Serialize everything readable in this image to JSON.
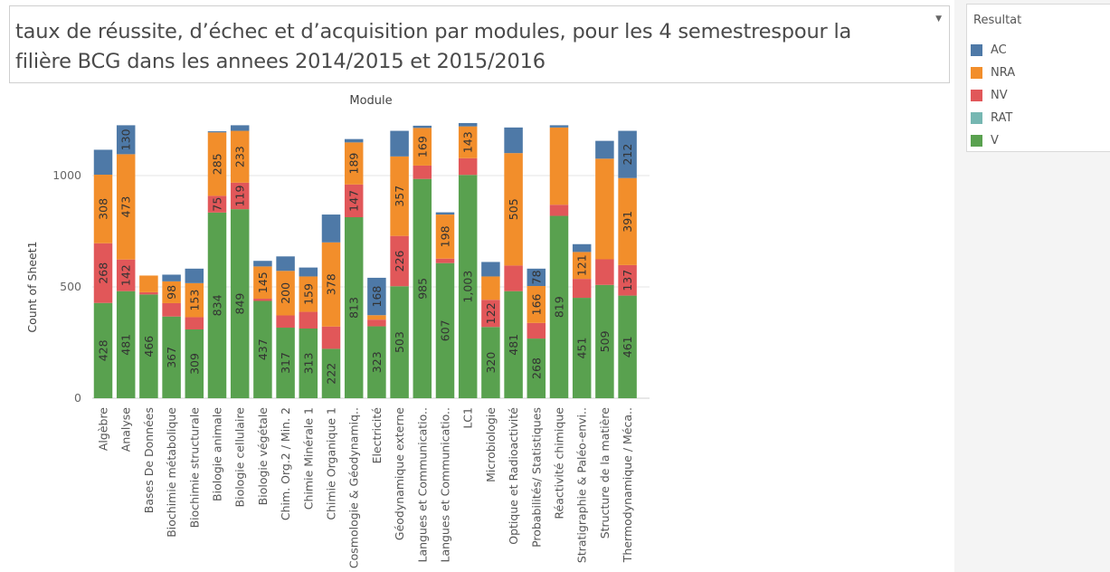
{
  "title": "taux de réussite, d’échec et d’acquisition par modules, pour les 4 semestrespour la filière  BCG dans les annees 2014/2015 et 2015/2016",
  "legend": {
    "title": "Resultat",
    "items": [
      {
        "label": "AC",
        "color": "#4e79a7"
      },
      {
        "label": "NRA",
        "color": "#f28e2b"
      },
      {
        "label": "NV",
        "color": "#e15759"
      },
      {
        "label": "RAT",
        "color": "#76b7b2"
      },
      {
        "label": "V",
        "color": "#59a14f"
      }
    ]
  },
  "chart_data": {
    "type": "bar",
    "stacked": true,
    "orientation": "vertical",
    "title": "Module",
    "xlabel": "",
    "ylabel": "Count of Sheet1",
    "ylim": [
      0,
      1260
    ],
    "yticks": [
      "0",
      "500",
      "1000"
    ],
    "grid": true,
    "legend_position": "right",
    "categories": [
      "Algèbre",
      "Analyse",
      "Bases De Données",
      "Biochimie métabolique",
      "Biochimie structurale",
      "Biologie animale",
      "Biologie cellulaire",
      "Biologie végétale",
      "Chim. Org.2 / Min. 2",
      "Chimie Minérale 1",
      "Chimie Organique 1",
      "Cosmologie & Géodynamiq..",
      "Electricité",
      "Géodynamique externe",
      "Langues et Communicatio..",
      "Langues et Communicatio..",
      "LC1",
      "Microbiologie",
      "Optique et Radioactivité",
      "Probabilités/ Statistiques",
      "Réactivité chimique",
      "Stratigraphie & Paléo-envi..",
      "Structure de la matière",
      "Thermodynamique / Méca.."
    ],
    "series": [
      {
        "name": "V",
        "color": "#59a14f",
        "values": [
          428,
          481,
          466,
          367,
          309,
          834,
          849,
          437,
          317,
          313,
          222,
          813,
          323,
          503,
          985,
          607,
          1003,
          320,
          481,
          268,
          819,
          451,
          509,
          461
        ],
        "labels": [
          "428",
          "481",
          "466",
          "367",
          "309",
          "834",
          "849",
          "437",
          "317",
          "313",
          "222",
          "813",
          "323",
          "503",
          "985",
          "607",
          "1,003",
          "320",
          "481",
          "268",
          "819",
          "451",
          "509",
          "461"
        ]
      },
      {
        "name": "RAT",
        "color": "#76b7b2",
        "values": [
          0,
          0,
          0,
          0,
          0,
          0,
          0,
          0,
          0,
          0,
          0,
          0,
          0,
          0,
          0,
          0,
          0,
          0,
          0,
          0,
          0,
          0,
          0,
          0
        ],
        "labels": [
          "",
          "",
          "",
          "",
          "",
          "",
          "",
          "",
          "",
          "",
          "",
          "",
          "",
          "",
          "",
          "",
          "",
          "",
          "",
          "",
          "",
          "",
          "",
          ""
        ]
      },
      {
        "name": "NV",
        "color": "#e15759",
        "values": [
          268,
          142,
          10,
          60,
          55,
          75,
          119,
          10,
          55,
          75,
          100,
          147,
          30,
          226,
          60,
          20,
          75,
          122,
          115,
          70,
          50,
          85,
          115,
          137
        ],
        "labels": [
          "268",
          "142",
          "",
          "",
          "",
          "75",
          "119",
          "",
          "",
          "",
          "",
          "147",
          "",
          "226",
          "",
          "",
          "",
          "122",
          "",
          "",
          "",
          "",
          "",
          "137"
        ]
      },
      {
        "name": "NRA",
        "color": "#f28e2b",
        "values": [
          308,
          473,
          75,
          98,
          153,
          285,
          233,
          145,
          200,
          159,
          378,
          189,
          20,
          357,
          169,
          198,
          143,
          105,
          505,
          166,
          347,
          121,
          452,
          391
        ],
        "labels": [
          "308",
          "473",
          "",
          "98",
          "153",
          "285",
          "233",
          "145",
          "200",
          "159",
          "378",
          "189",
          "",
          "357",
          "169",
          "198",
          "143",
          "",
          "505",
          "166",
          "",
          "121",
          "",
          "391"
        ]
      },
      {
        "name": "AC",
        "color": "#4e79a7",
        "values": [
          112,
          130,
          0,
          30,
          65,
          5,
          25,
          25,
          65,
          40,
          125,
          15,
          168,
          115,
          10,
          10,
          15,
          65,
          115,
          78,
          10,
          35,
          80,
          212
        ],
        "labels": [
          "",
          "130",
          "",
          "",
          "",
          "",
          "",
          "",
          "",
          "",
          "",
          "",
          "168",
          "",
          "",
          "",
          "",
          "",
          "",
          "78",
          "",
          "",
          "",
          "212"
        ]
      }
    ]
  }
}
